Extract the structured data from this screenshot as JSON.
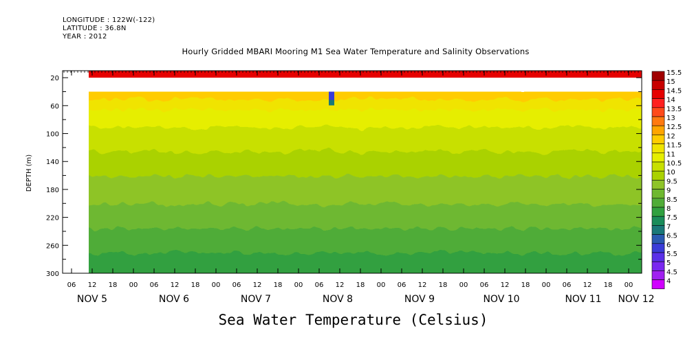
{
  "header": {
    "longitude": "LONGITUDE : 122W(-122)",
    "latitude": "LATITUDE : 36.8N",
    "year": "YEAR : 2012"
  },
  "chart_data": {
    "type": "heatmap",
    "title": "Hourly Gridded MBARI Mooring M1 Sea Water Temperature and Salinity Observations",
    "footer": "Sea Water Temperature (Celsius)",
    "ylabel": "DEPTH (m)",
    "y_ticks": [
      20,
      60,
      100,
      140,
      180,
      220,
      260,
      300
    ],
    "ylim": [
      300,
      10
    ],
    "x_hour_ticks": [
      "06",
      "12",
      "18",
      "00",
      "06",
      "12",
      "18",
      "00",
      "06",
      "12",
      "18",
      "00",
      "06",
      "12",
      "18",
      "00",
      "06",
      "12",
      "18",
      "00",
      "06",
      "12",
      "18",
      "00",
      "06",
      "12",
      "18",
      "00",
      "06",
      "12",
      "18",
      "00"
    ],
    "x_day_labels": [
      "NOV  5",
      "NOV  6",
      "NOV  7",
      "NOV  8",
      "NOV  9",
      "NOV 10",
      "NOV 11",
      "NOV 12"
    ],
    "colorbar_levels": [
      "15.5",
      "15",
      "14.5",
      "14",
      "13.5",
      "13",
      "12.5",
      "12",
      "11.5",
      "11",
      "10.5",
      "10",
      "9.5",
      "9",
      "8.5",
      "8",
      "7.5",
      "7",
      "6.5",
      "6",
      "5.5",
      "5",
      "4.5",
      "4"
    ],
    "colorbar_colors": [
      "#a00000",
      "#c80000",
      "#e60000",
      "#ff2020",
      "#ff4a1a",
      "#ff7a10",
      "#ffa500",
      "#ffcc00",
      "#f0e400",
      "#e6ee00",
      "#c8e000",
      "#aad200",
      "#8ec428",
      "#6eb830",
      "#50ac38",
      "#30a040",
      "#1a8c5a",
      "#1a7878",
      "#2a5ab0",
      "#3a3cd8",
      "#5a30e8",
      "#7a28f0",
      "#a020f0",
      "#d000ff"
    ],
    "depth_bands": [
      {
        "depth_from": 10,
        "depth_to": 20,
        "temperature": 14.8
      },
      {
        "depth_from": 40,
        "depth_to": 55,
        "temperature": 12.0
      },
      {
        "depth_from": 55,
        "depth_to": 70,
        "temperature": 11.5
      },
      {
        "depth_from": 70,
        "depth_to": 95,
        "temperature": 11.0
      },
      {
        "depth_from": 95,
        "depth_to": 130,
        "temperature": 10.5
      },
      {
        "depth_from": 130,
        "depth_to": 165,
        "temperature": 10.0
      },
      {
        "depth_from": 165,
        "depth_to": 205,
        "temperature": 9.5
      },
      {
        "depth_from": 205,
        "depth_to": 240,
        "temperature": 9.0
      },
      {
        "depth_from": 240,
        "depth_to": 275,
        "temperature": 8.5
      },
      {
        "depth_from": 275,
        "depth_to": 300,
        "temperature": 8.0
      }
    ],
    "data_gap": {
      "depth_from": 20,
      "depth_to": 40
    },
    "grid": false,
    "legend": "right"
  }
}
